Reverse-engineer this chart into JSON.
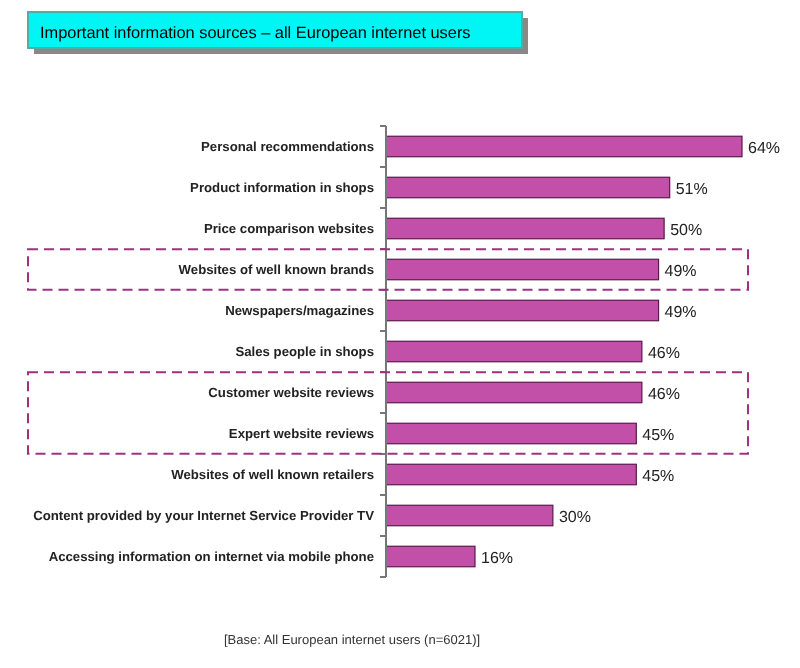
{
  "chart_data": {
    "type": "bar",
    "orientation": "horizontal",
    "title": "Important information sources – all European internet users",
    "categories": [
      "Personal recommendations",
      "Product information in shops",
      "Price comparison websites",
      "Websites of well known brands",
      "Newspapers/magazines",
      "Sales people in shops",
      "Customer website reviews",
      "Expert website reviews",
      "Websites of well known retailers",
      "Content provided by your Internet Service Provider TV",
      "Accessing information on internet via mobile phone"
    ],
    "values": [
      64,
      51,
      50,
      49,
      49,
      46,
      46,
      45,
      45,
      30,
      16
    ],
    "value_labels": [
      "64%",
      "51%",
      "50%",
      "49%",
      "49%",
      "46%",
      "46%",
      "45%",
      "45%",
      "30%",
      "16%"
    ],
    "color": "#c24fa8",
    "annotations": [
      "[Base: All European internet users (n=6021)]"
    ]
  }
}
